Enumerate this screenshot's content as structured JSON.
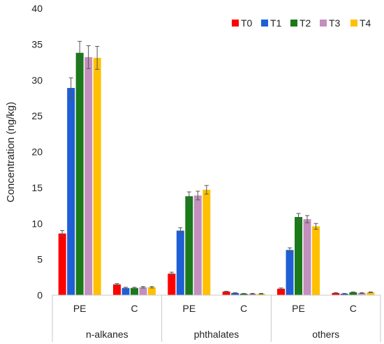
{
  "chart_data": {
    "type": "bar",
    "title": "",
    "ylabel": "Concentration (ng/kg)",
    "xlabel": "",
    "ylim": [
      0,
      40
    ],
    "yticks": [
      "0",
      "5",
      "10",
      "15",
      "20",
      "25",
      "30",
      "35",
      "40"
    ],
    "grid": false,
    "legend_position": "top-right",
    "groups": [
      "n-alkanes",
      "phthalates",
      "others"
    ],
    "categories": [
      "PE",
      "C",
      "PE",
      "C",
      "PE",
      "C"
    ],
    "series": [
      {
        "name": "T0",
        "color": "#ff0000",
        "values": [
          8.6,
          1.5,
          3.0,
          0.5,
          0.9,
          0.3
        ],
        "errors": [
          0.4,
          0.1,
          0.2,
          0.05,
          0.1,
          0.05
        ]
      },
      {
        "name": "T1",
        "color": "#1f5fd6",
        "values": [
          28.9,
          1.0,
          9.0,
          0.3,
          6.3,
          0.2
        ],
        "errors": [
          1.4,
          0.1,
          0.4,
          0.05,
          0.3,
          0.05
        ]
      },
      {
        "name": "T2",
        "color": "#1a7a1a",
        "values": [
          33.8,
          1.0,
          13.8,
          0.2,
          10.9,
          0.4
        ],
        "errors": [
          1.6,
          0.1,
          0.6,
          0.05,
          0.5,
          0.05
        ]
      },
      {
        "name": "T3",
        "color": "#c38fbd",
        "values": [
          33.2,
          1.1,
          13.9,
          0.2,
          10.6,
          0.3
        ],
        "errors": [
          1.6,
          0.1,
          0.6,
          0.05,
          0.5,
          0.05
        ]
      },
      {
        "name": "T4",
        "color": "#ffc000",
        "values": [
          33.1,
          1.1,
          14.7,
          0.2,
          9.6,
          0.4
        ],
        "errors": [
          1.6,
          0.1,
          0.6,
          0.05,
          0.4,
          0.05
        ]
      }
    ]
  }
}
